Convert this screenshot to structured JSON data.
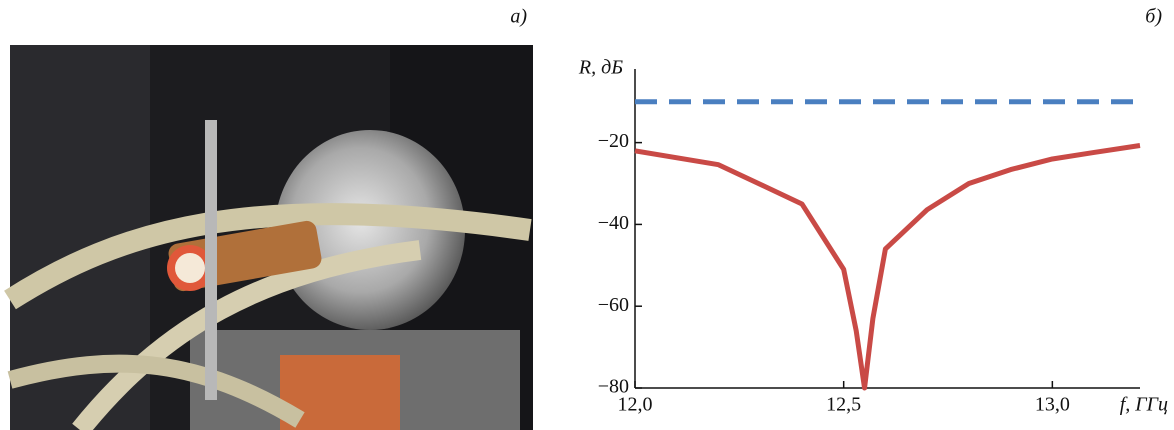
{
  "panels": {
    "left_label": "a)",
    "right_label": "б)"
  },
  "chart_data": {
    "type": "line",
    "y_label": "R, дБ",
    "x_label": "f, ГГц",
    "xlim": [
      12.0,
      13.21
    ],
    "ylim": [
      -80,
      -2
    ],
    "xticks": [
      {
        "value": 12.0,
        "label": "12,0"
      },
      {
        "value": 12.5,
        "label": "12,5"
      },
      {
        "value": 13.0,
        "label": "13,0"
      }
    ],
    "yticks": [
      {
        "value": -80,
        "label": "−80"
      },
      {
        "value": -60,
        "label": "−60"
      },
      {
        "value": -40,
        "label": "−40"
      },
      {
        "value": -20,
        "label": "−20"
      }
    ],
    "series": [
      {
        "color": "#c94a46",
        "dashed": false,
        "x": [
          12.0,
          12.2,
          12.4,
          12.5,
          12.53,
          12.55,
          12.57,
          12.6,
          12.7,
          12.8,
          12.9,
          13.0,
          13.1,
          13.21
        ],
        "values": [
          -22,
          -25.4,
          -35,
          -51,
          -66,
          -80,
          -63,
          -46,
          -36.4,
          -30,
          -26.6,
          -24,
          -22.4,
          -20.7
        ]
      },
      {
        "color": "#4a7fc0",
        "dashed": true,
        "x": [
          12.0,
          13.21
        ],
        "values": [
          -10,
          -10
        ]
      }
    ]
  }
}
